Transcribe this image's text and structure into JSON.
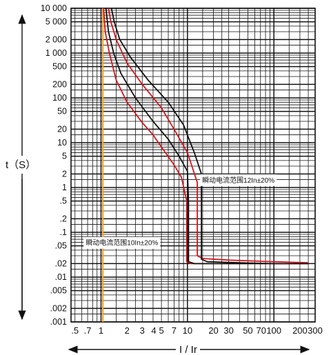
{
  "chart_data": {
    "type": "line",
    "xscale": "log",
    "yscale": "log",
    "xlim": [
      0.45,
      300
    ],
    "ylim": [
      0.001,
      10000
    ],
    "grid": true,
    "xlabel": "I / Ir",
    "ylabel": "t（S）",
    "x_ticks": [
      {
        "value": 0.5,
        "label": ".5"
      },
      {
        "value": 0.7,
        "label": ".7"
      },
      {
        "value": 1,
        "label": "1"
      },
      {
        "value": 2,
        "label": "2"
      },
      {
        "value": 3,
        "label": "3"
      },
      {
        "value": 4,
        "label": "4"
      },
      {
        "value": 5,
        "label": "5"
      },
      {
        "value": 7,
        "label": "7"
      },
      {
        "value": 10,
        "label": "10"
      },
      {
        "value": 20,
        "label": "20"
      },
      {
        "value": 30,
        "label": "30"
      },
      {
        "value": 50,
        "label": "50"
      },
      {
        "value": 70,
        "label": "70"
      },
      {
        "value": 100,
        "label": "100"
      },
      {
        "value": 200,
        "label": "200"
      },
      {
        "value": 300,
        "label": "300"
      }
    ],
    "y_ticks": [
      {
        "value": 10000,
        "label": "10 000"
      },
      {
        "value": 5000,
        "label": "5 000"
      },
      {
        "value": 2000,
        "label": "2 000"
      },
      {
        "value": 1000,
        "label": "1 000"
      },
      {
        "value": 500,
        "label": "500"
      },
      {
        "value": 200,
        "label": "200"
      },
      {
        "value": 100,
        "label": "100"
      },
      {
        "value": 50,
        "label": "50"
      },
      {
        "value": 20,
        "label": "20"
      },
      {
        "value": 10,
        "label": "10"
      },
      {
        "value": 5,
        "label": "5"
      },
      {
        "value": 2,
        "label": "2"
      },
      {
        "value": 1,
        "label": "1"
      },
      {
        "value": 0.5,
        "label": ".5"
      },
      {
        "value": 0.2,
        "label": ".2"
      },
      {
        "value": 0.1,
        "label": ".1"
      },
      {
        "value": 0.05,
        "label": ".05"
      },
      {
        "value": 0.02,
        "label": ".02"
      },
      {
        "value": 0.01,
        "label": ".01"
      },
      {
        "value": 0.005,
        "label": ".005"
      },
      {
        "value": 0.002,
        "label": ".002"
      },
      {
        "value": 0.001,
        "label": ".001"
      }
    ],
    "reference_line": {
      "x": 1.05,
      "color": "#f2a12a"
    },
    "series": [
      {
        "color": "#d4141c",
        "points": [
          [
            1.07,
            10000
          ],
          [
            1.12,
            3000
          ],
          [
            1.25,
            1000
          ],
          [
            1.5,
            250
          ],
          [
            2,
            80
          ],
          [
            3,
            28
          ],
          [
            4,
            15
          ],
          [
            5,
            8
          ],
          [
            7,
            3.2
          ],
          [
            8.5,
            1.7
          ],
          [
            9.8,
            0.5
          ],
          [
            9.8,
            0.022
          ],
          [
            11,
            0.02
          ],
          [
            30,
            0.02
          ],
          [
            100,
            0.02
          ],
          [
            250,
            0.02
          ]
        ]
      },
      {
        "color": "#d4141c",
        "points": [
          [
            1.22,
            10000
          ],
          [
            1.3,
            5000
          ],
          [
            1.5,
            2000
          ],
          [
            2,
            600
          ],
          [
            3,
            200
          ],
          [
            5,
            60
          ],
          [
            7,
            20
          ],
          [
            10,
            6
          ],
          [
            13,
            1.3
          ],
          [
            13,
            0.03
          ],
          [
            15,
            0.026
          ],
          [
            30,
            0.024
          ],
          [
            100,
            0.022
          ],
          [
            250,
            0.021
          ]
        ]
      },
      {
        "color": "#111111",
        "points": [
          [
            1.14,
            10000
          ],
          [
            1.22,
            3000
          ],
          [
            1.4,
            1000
          ],
          [
            1.7,
            350
          ],
          [
            2.5,
            100
          ],
          [
            4,
            30
          ],
          [
            6,
            12
          ],
          [
            8,
            5
          ],
          [
            10,
            2.3
          ],
          [
            10.3,
            0.5
          ],
          [
            10.3,
            0.022
          ],
          [
            12,
            0.02
          ],
          [
            30,
            0.02
          ],
          [
            100,
            0.02
          ],
          [
            250,
            0.02
          ]
        ]
      },
      {
        "color": "#111111",
        "points": [
          [
            1.32,
            10000
          ],
          [
            1.42,
            5000
          ],
          [
            1.65,
            2000
          ],
          [
            2.2,
            800
          ],
          [
            3.5,
            250
          ],
          [
            6,
            80
          ],
          [
            9,
            25
          ],
          [
            12,
            6
          ],
          [
            14.5,
            2
          ],
          [
            14.5,
            0.025
          ],
          [
            17,
            0.022
          ],
          [
            40,
            0.021
          ],
          [
            100,
            0.02
          ],
          [
            250,
            0.02
          ]
        ]
      }
    ],
    "annotations": [
      {
        "text": "瞬动电流范围12In±20%",
        "x": 14,
        "y": 1.9
      },
      {
        "text": "瞬动电流范围10In±20%",
        "x": 0.63,
        "y": 0.076
      }
    ]
  }
}
